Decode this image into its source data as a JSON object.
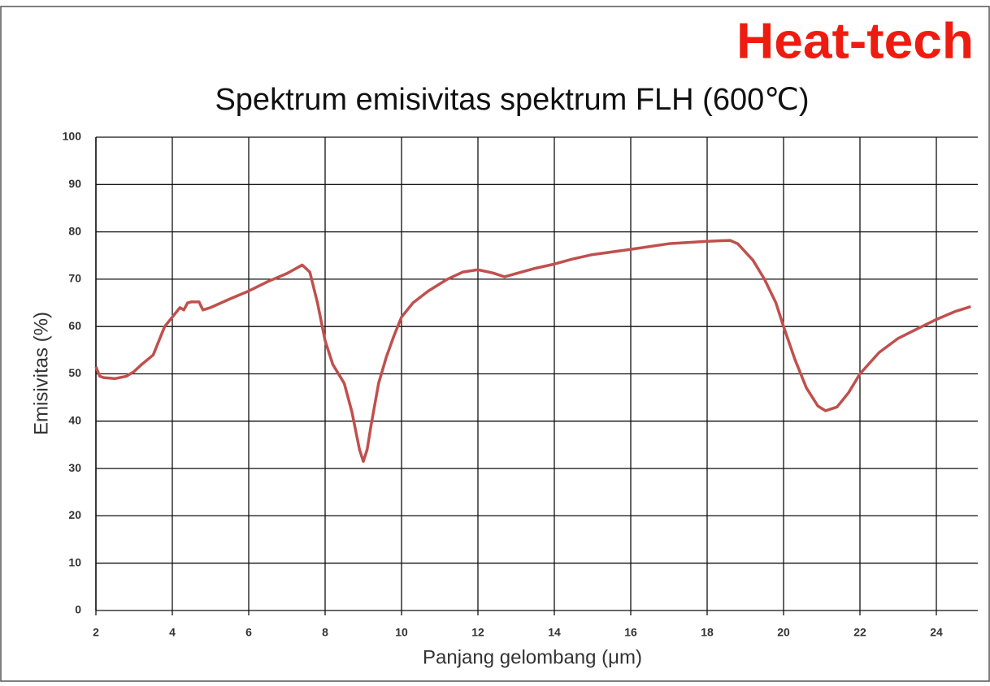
{
  "brand": "Heat-tech",
  "chart_data": {
    "type": "line",
    "title": "Spektrum emisivitas spektrum FLH (600℃)",
    "x_label": "Panjang gelombang (μm)",
    "y_label": "Emisivitas (%)",
    "x": [
      2,
      2.1,
      2.2,
      2.5,
      2.8,
      3.0,
      3.2,
      3.5,
      3.6,
      3.8,
      4.0,
      4.2,
      4.3,
      4.4,
      4.5,
      4.7,
      4.8,
      5.0,
      5.5,
      6.0,
      6.5,
      7.0,
      7.4,
      7.6,
      7.8,
      8.0,
      8.2,
      8.5,
      8.7,
      8.9,
      9.0,
      9.1,
      9.2,
      9.4,
      9.6,
      9.8,
      10.0,
      10.3,
      10.7,
      11.2,
      11.6,
      12.0,
      12.4,
      12.7,
      13.0,
      13.5,
      14,
      14.5,
      15,
      16,
      17,
      18,
      18.6,
      18.8,
      19.2,
      19.5,
      19.8,
      20,
      20.3,
      20.6,
      20.9,
      21.1,
      21.4,
      21.7,
      22,
      22.5,
      23,
      23.5,
      24,
      24.5,
      24.9
    ],
    "series": [
      {
        "name": "FLH",
        "color": "#c0504d",
        "values": [
          51.5,
          49.5,
          49.2,
          49,
          49.5,
          50.5,
          52,
          54,
          56,
          60,
          62,
          64,
          63.5,
          65,
          65.2,
          65.2,
          63.5,
          64,
          65.8,
          67.5,
          69.5,
          71.2,
          73,
          71.5,
          65,
          57,
          52,
          48,
          42,
          34,
          31.5,
          34,
          39,
          48,
          53.5,
          58,
          62,
          65,
          67.5,
          70,
          71.5,
          72,
          71.3,
          70.5,
          71.2,
          72.3,
          73.2,
          74.3,
          75.2,
          76.3,
          77.5,
          78,
          78.2,
          77.5,
          74,
          70,
          65,
          60,
          53,
          47,
          43.2,
          42.2,
          43,
          46,
          50,
          54.5,
          57.5,
          59.5,
          61.5,
          63.2,
          64.2
        ]
      }
    ],
    "xlim": [
      2,
      25
    ],
    "xticks": [
      2,
      4,
      6,
      8,
      10,
      12,
      14,
      16,
      18,
      20,
      22,
      24
    ],
    "ylim": [
      0,
      100
    ],
    "yticks": [
      0,
      10,
      20,
      30,
      40,
      50,
      60,
      70,
      80,
      90,
      100
    ],
    "grid": true
  }
}
